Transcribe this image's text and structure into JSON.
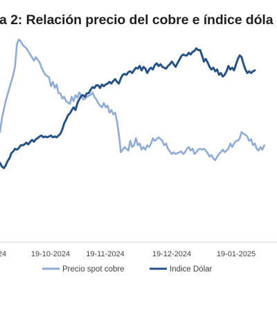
{
  "title": "a 2: Relación precio del cobre e índice dóla",
  "chart_data": {
    "type": "line",
    "x_ticks": [
      "24",
      "19-10-2024",
      "19-11-2024",
      "19-12-2024",
      "19-01-2025"
    ],
    "series": [
      {
        "name": "Precio spot cobre",
        "color": "#8eaad6",
        "points": [
          [
            -1,
            5
          ],
          [
            0,
            20
          ],
          [
            2,
            40
          ],
          [
            4,
            55
          ],
          [
            6,
            70
          ],
          [
            7,
            80
          ],
          [
            8,
            105
          ],
          [
            9,
            110
          ],
          [
            10,
            108
          ],
          [
            11,
            104
          ],
          [
            13,
            100
          ],
          [
            15,
            93
          ],
          [
            17,
            86
          ],
          [
            18,
            90
          ],
          [
            20,
            84
          ],
          [
            21,
            78
          ],
          [
            23,
            70
          ],
          [
            25,
            67
          ],
          [
            26,
            57
          ],
          [
            27,
            62
          ],
          [
            28,
            55
          ],
          [
            29,
            59
          ],
          [
            30,
            49
          ],
          [
            31,
            49
          ],
          [
            32,
            43
          ],
          [
            33,
            45
          ],
          [
            34,
            40
          ],
          [
            36,
            37
          ],
          [
            37,
            45
          ],
          [
            38,
            40
          ],
          [
            39,
            47
          ],
          [
            40,
            44
          ],
          [
            41,
            50
          ],
          [
            42,
            47
          ],
          [
            43,
            42
          ],
          [
            44,
            43
          ],
          [
            45,
            45
          ],
          [
            47,
            47
          ],
          [
            48,
            50
          ],
          [
            49,
            45
          ],
          [
            50,
            42
          ],
          [
            51,
            38
          ],
          [
            52,
            35
          ],
          [
            53,
            33
          ],
          [
            54,
            38
          ],
          [
            55,
            33
          ],
          [
            56,
            35
          ],
          [
            57,
            27
          ],
          [
            58,
            30
          ],
          [
            59,
            25
          ],
          [
            60,
            27
          ],
          [
            61,
            17
          ],
          [
            62,
            2
          ],
          [
            63,
            -18
          ],
          [
            64,
            -15
          ],
          [
            65,
            -12
          ],
          [
            66,
            -14
          ],
          [
            67,
            -16
          ],
          [
            68,
            -5
          ],
          [
            69,
            -12
          ],
          [
            70,
            -10
          ],
          [
            71,
            -2
          ],
          [
            72,
            -10
          ],
          [
            73,
            -8
          ],
          [
            74,
            -15
          ],
          [
            75,
            -12
          ],
          [
            76,
            -15
          ],
          [
            77,
            -10
          ],
          [
            78,
            -12
          ],
          [
            79,
            -8
          ],
          [
            80,
            -2
          ],
          [
            81,
            -5
          ],
          [
            82,
            -3
          ],
          [
            83,
            -1
          ],
          [
            84,
            -3
          ],
          [
            85,
            -5
          ],
          [
            86,
            -10
          ],
          [
            87,
            -8
          ],
          [
            88,
            -14
          ],
          [
            89,
            -17
          ],
          [
            90,
            -20
          ],
          [
            91,
            -18
          ],
          [
            92,
            -20
          ],
          [
            93,
            -19
          ],
          [
            94,
            -18
          ],
          [
            95,
            -17
          ],
          [
            96,
            -20
          ],
          [
            97,
            -18
          ],
          [
            98,
            -14
          ],
          [
            99,
            -12
          ],
          [
            100,
            -16
          ],
          [
            101,
            -14
          ],
          [
            102,
            -20
          ],
          [
            103,
            -18
          ],
          [
            104,
            -15
          ],
          [
            105,
            -14
          ],
          [
            106,
            -15
          ],
          [
            107,
            -14
          ],
          [
            108,
            -16
          ],
          [
            109,
            -19
          ],
          [
            110,
            -23
          ],
          [
            111,
            -21
          ],
          [
            112,
            -25
          ],
          [
            113,
            -27
          ],
          [
            114,
            -23
          ],
          [
            115,
            -20
          ],
          [
            116,
            -18
          ],
          [
            117,
            -15
          ],
          [
            118,
            -18
          ],
          [
            119,
            -16
          ],
          [
            120,
            -14
          ],
          [
            121,
            -8
          ],
          [
            122,
            -12
          ],
          [
            123,
            -8
          ],
          [
            124,
            -5
          ],
          [
            125,
            -5
          ],
          [
            126,
            -2
          ],
          [
            127,
            5
          ],
          [
            128,
            3
          ],
          [
            129,
            2
          ],
          [
            130,
            0
          ],
          [
            131,
            -5
          ],
          [
            132,
            -3
          ],
          [
            133,
            -10
          ],
          [
            134,
            -8
          ],
          [
            135,
            -14
          ],
          [
            136,
            -16
          ],
          [
            137,
            -12
          ],
          [
            138,
            -15
          ],
          [
            139,
            -10
          ]
        ]
      },
      {
        "name": "Indice Dólar",
        "color": "#245286",
        "points": [
          [
            -1,
            -30
          ],
          [
            0,
            -34
          ],
          [
            1,
            -36
          ],
          [
            2,
            -33
          ],
          [
            3,
            -28
          ],
          [
            4,
            -25
          ],
          [
            5,
            -19
          ],
          [
            6,
            -17
          ],
          [
            7,
            -14
          ],
          [
            8,
            -15
          ],
          [
            9,
            -13
          ],
          [
            10,
            -10
          ],
          [
            11,
            -10
          ],
          [
            12,
            -9
          ],
          [
            13,
            -7
          ],
          [
            14,
            -9
          ],
          [
            15,
            -6
          ],
          [
            16,
            -4
          ],
          [
            17,
            -6
          ],
          [
            18,
            -3
          ],
          [
            19,
            -2
          ],
          [
            20,
            0
          ],
          [
            21,
            1
          ],
          [
            22,
            -1
          ],
          [
            23,
            0
          ],
          [
            24,
            -1
          ],
          [
            25,
            0
          ],
          [
            26,
            1
          ],
          [
            27,
            -1
          ],
          [
            28,
            0
          ],
          [
            29,
            -1
          ],
          [
            30,
            1
          ],
          [
            31,
            3
          ],
          [
            32,
            8
          ],
          [
            33,
            15
          ],
          [
            34,
            19
          ],
          [
            35,
            24
          ],
          [
            36,
            26
          ],
          [
            37,
            30
          ],
          [
            38,
            33
          ],
          [
            39,
            30
          ],
          [
            40,
            38
          ],
          [
            41,
            42
          ],
          [
            42,
            46
          ],
          [
            43,
            47
          ],
          [
            44,
            45
          ],
          [
            45,
            49
          ],
          [
            46,
            49
          ],
          [
            47,
            53
          ],
          [
            48,
            56
          ],
          [
            49,
            55
          ],
          [
            50,
            58
          ],
          [
            51,
            58
          ],
          [
            52,
            55
          ],
          [
            53,
            59
          ],
          [
            54,
            57
          ],
          [
            55,
            59
          ],
          [
            56,
            60
          ],
          [
            57,
            62
          ],
          [
            58,
            60
          ],
          [
            59,
            63
          ],
          [
            60,
            65
          ],
          [
            61,
            62
          ],
          [
            62,
            60
          ],
          [
            63,
            66
          ],
          [
            64,
            70
          ],
          [
            65,
            71
          ],
          [
            66,
            70
          ],
          [
            67,
            73
          ],
          [
            68,
            74
          ],
          [
            69,
            72
          ],
          [
            70,
            75
          ],
          [
            71,
            78
          ],
          [
            72,
            77
          ],
          [
            73,
            80
          ],
          [
            74,
            75
          ],
          [
            75,
            79
          ],
          [
            76,
            77
          ],
          [
            77,
            72
          ],
          [
            78,
            76
          ],
          [
            79,
            78
          ],
          [
            80,
            76
          ],
          [
            81,
            81
          ],
          [
            82,
            83
          ],
          [
            83,
            80
          ],
          [
            84,
            82
          ],
          [
            85,
            79
          ],
          [
            86,
            78
          ],
          [
            87,
            77
          ],
          [
            88,
            80
          ],
          [
            89,
            82
          ],
          [
            90,
            85
          ],
          [
            91,
            82
          ],
          [
            92,
            79
          ],
          [
            93,
            83
          ],
          [
            94,
            87
          ],
          [
            95,
            91
          ],
          [
            96,
            93
          ],
          [
            97,
            92
          ],
          [
            98,
            92
          ],
          [
            99,
            95
          ],
          [
            100,
            93
          ],
          [
            101,
            96
          ],
          [
            102,
            97
          ],
          [
            103,
            100
          ],
          [
            104,
            98
          ],
          [
            105,
            98
          ],
          [
            106,
            92
          ],
          [
            107,
            85
          ],
          [
            108,
            88
          ],
          [
            109,
            84
          ],
          [
            110,
            79
          ],
          [
            111,
            76
          ],
          [
            112,
            78
          ],
          [
            113,
            74
          ],
          [
            114,
            76
          ],
          [
            115,
            70
          ],
          [
            116,
            72
          ],
          [
            117,
            68
          ],
          [
            118,
            70
          ],
          [
            119,
            74
          ],
          [
            120,
            80
          ],
          [
            121,
            76
          ],
          [
            122,
            78
          ],
          [
            123,
            75
          ],
          [
            124,
            82
          ],
          [
            125,
            88
          ],
          [
            126,
            92
          ],
          [
            127,
            90
          ],
          [
            128,
            82
          ],
          [
            129,
            76
          ],
          [
            130,
            72
          ],
          [
            131,
            74
          ],
          [
            132,
            72
          ],
          [
            133,
            74
          ],
          [
            134,
            75
          ]
        ]
      }
    ],
    "ylim": [
      -100,
      100
    ],
    "xlim": [
      -1,
      145
    ],
    "grid": false,
    "legend_position": "bottom"
  }
}
